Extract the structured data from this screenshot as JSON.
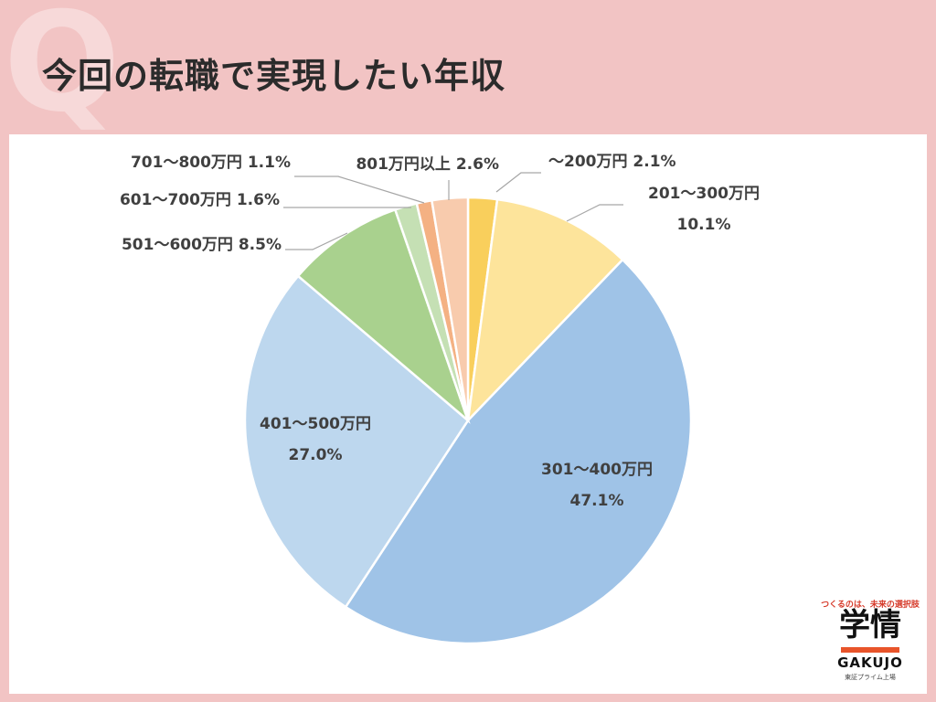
{
  "header": {
    "q_mark": "Q",
    "title": "今回の転職で実現したい年収"
  },
  "logo": {
    "tagline": "つくるのは、未来の選択肢",
    "name": "学情",
    "name_en": "GAKUJO",
    "listing": "東証プライム上場"
  },
  "chart_data": {
    "type": "pie",
    "title": "",
    "start_angle": "12 o'clock",
    "direction": "clockwise",
    "slices": [
      {
        "label": "～200万円",
        "value": 2.1,
        "value_text": "2.1%",
        "color": "#f9cf5c"
      },
      {
        "label": "201～300万円",
        "value": 10.1,
        "value_text": "10.1%",
        "color": "#fde49b"
      },
      {
        "label": "301～400万円",
        "value": 47.1,
        "value_text": "47.1%",
        "color": "#9fc3e7"
      },
      {
        "label": "401～500万円",
        "value": 27.0,
        "value_text": "27.0%",
        "color": "#bdd7ee"
      },
      {
        "label": "501～600万円",
        "value": 8.5,
        "value_text": "8.5%",
        "color": "#a9d18e"
      },
      {
        "label": "601～700万円",
        "value": 1.6,
        "value_text": "1.6%",
        "color": "#c5e0b4"
      },
      {
        "label": "701～800万円",
        "value": 1.1,
        "value_text": "1.1%",
        "color": "#f4b183"
      },
      {
        "label": "801万円以上",
        "value": 2.6,
        "value_text": "2.6%",
        "color": "#f8cbad"
      }
    ]
  }
}
